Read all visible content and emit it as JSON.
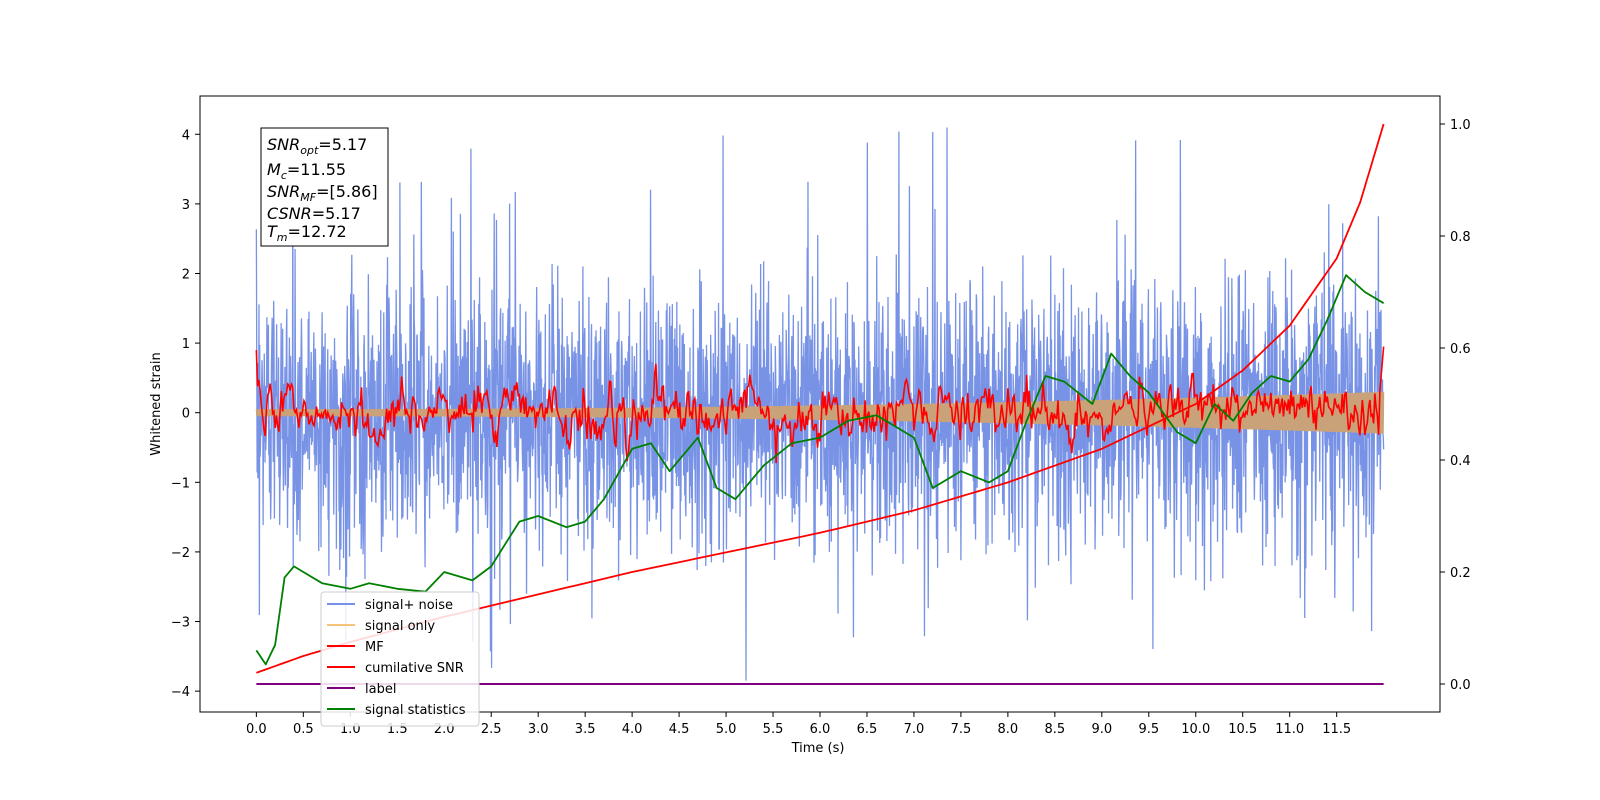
{
  "chart_data": {
    "type": "line",
    "xlabel": "Time (s)",
    "ylabel": "Whitened strain",
    "xlim": [
      -0.6,
      12.6
    ],
    "ylim": [
      -4.3,
      4.55
    ],
    "y2lim": [
      -0.05,
      1.05
    ],
    "xticks": [
      "0.0",
      "0.5",
      "1.0",
      "1.5",
      "2.0",
      "2.5",
      "3.0",
      "3.5",
      "4.0",
      "4.5",
      "5.0",
      "5.5",
      "6.0",
      "6.5",
      "7.0",
      "7.5",
      "8.0",
      "8.5",
      "9.0",
      "9.5",
      "10.0",
      "10.5",
      "11.0",
      "11.5"
    ],
    "yticks": [
      "4",
      "3",
      "2",
      "1",
      "0",
      "−1",
      "−2",
      "−3",
      "−4"
    ],
    "y2ticks": [
      "1.0",
      "0.8",
      "0.6",
      "0.4",
      "0.2",
      "0.0"
    ],
    "legend_position": "lower-left",
    "annotation": {
      "lines": [
        {
          "name": "SNR",
          "sub": "opt",
          "value": "=5.17"
        },
        {
          "name": "M",
          "sub": "c",
          "value": "=11.55"
        },
        {
          "name": "SNR",
          "sub": "MF",
          "value": "=[5.86]"
        },
        {
          "name": "CSNR",
          "sub": "",
          "value": "=5.17"
        },
        {
          "name": "T",
          "sub": "m",
          "value": "=12.72"
        }
      ]
    },
    "series": [
      {
        "name": "signal+ noise",
        "color": "#7893e6",
        "axis": "left",
        "x_range": [
          0.0,
          12.0
        ],
        "y_typical_range": [
          -2.6,
          2.6
        ],
        "y_extremes": [
          -3.85,
          4.15
        ]
      },
      {
        "name": "signal only",
        "color": "#f5c37a",
        "axis": "left",
        "x_range": [
          0.0,
          12.0
        ],
        "envelope_start": 0.05,
        "envelope_end": 0.3
      },
      {
        "name": "MF",
        "color": "#ff0000",
        "axis": "left",
        "x_range": [
          0.0,
          12.0
        ],
        "start_value": 0.9,
        "end_value": 0.95
      },
      {
        "name": "cumilative SNR",
        "color": "#ff0000",
        "axis": "right",
        "x": [
          0.0,
          0.5,
          1.0,
          2.0,
          3.0,
          4.0,
          5.0,
          6.0,
          7.0,
          8.0,
          9.0,
          9.5,
          10.0,
          10.5,
          11.0,
          11.5,
          11.75,
          12.0
        ],
        "y": [
          0.02,
          0.05,
          0.075,
          0.12,
          0.16,
          0.2,
          0.235,
          0.27,
          0.31,
          0.36,
          0.42,
          0.46,
          0.5,
          0.56,
          0.64,
          0.76,
          0.86,
          1.0
        ]
      },
      {
        "name": "label",
        "color": "#800080",
        "axis": "right",
        "x": [
          0.0,
          12.0
        ],
        "y": [
          0.0,
          0.0
        ]
      },
      {
        "name": "signal statistics",
        "color": "#008000",
        "axis": "right",
        "x": [
          0.0,
          0.1,
          0.2,
          0.3,
          0.4,
          0.5,
          0.7,
          1.0,
          1.2,
          1.5,
          1.8,
          2.0,
          2.3,
          2.5,
          2.8,
          3.0,
          3.3,
          3.5,
          3.7,
          4.0,
          4.2,
          4.4,
          4.7,
          4.9,
          5.1,
          5.4,
          5.7,
          6.0,
          6.3,
          6.6,
          6.8,
          7.0,
          7.2,
          7.5,
          7.8,
          8.0,
          8.2,
          8.4,
          8.6,
          8.9,
          9.1,
          9.3,
          9.5,
          9.8,
          10.0,
          10.2,
          10.4,
          10.6,
          10.8,
          11.0,
          11.2,
          11.4,
          11.6,
          11.8,
          12.0
        ],
        "y": [
          0.06,
          0.035,
          0.07,
          0.19,
          0.21,
          0.2,
          0.18,
          0.17,
          0.18,
          0.17,
          0.165,
          0.2,
          0.185,
          0.21,
          0.29,
          0.3,
          0.28,
          0.29,
          0.33,
          0.42,
          0.43,
          0.38,
          0.44,
          0.35,
          0.33,
          0.39,
          0.43,
          0.44,
          0.47,
          0.48,
          0.46,
          0.44,
          0.35,
          0.38,
          0.36,
          0.38,
          0.47,
          0.55,
          0.54,
          0.5,
          0.59,
          0.55,
          0.52,
          0.45,
          0.43,
          0.5,
          0.47,
          0.52,
          0.55,
          0.54,
          0.58,
          0.65,
          0.73,
          0.7,
          0.68
        ]
      }
    ]
  }
}
